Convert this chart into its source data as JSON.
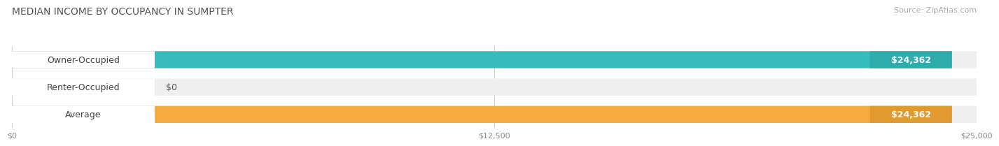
{
  "title": "MEDIAN INCOME BY OCCUPANCY IN SUMPTER",
  "source": "Source: ZipAtlas.com",
  "categories": [
    "Owner-Occupied",
    "Renter-Occupied",
    "Average"
  ],
  "values": [
    24362,
    0,
    24362
  ],
  "bar_colors": [
    "#36bcbc",
    "#c8a8d2",
    "#f5ab3e"
  ],
  "bar_end_colors": [
    "#2eacac",
    "#b090bb",
    "#e09a30"
  ],
  "bar_bg_color": "#efefef",
  "x_max": 25000,
  "x_ticks": [
    0,
    12500,
    25000
  ],
  "x_tick_labels": [
    "$0",
    "$12,500",
    "$25,000"
  ],
  "value_labels": [
    "$24,362",
    "$0",
    "$24,362"
  ],
  "title_fontsize": 10,
  "source_fontsize": 8,
  "label_fontsize": 9,
  "value_fontsize": 9,
  "background_color": "#ffffff",
  "label_pill_color": "#ffffff",
  "grid_color": "#d0d0d0"
}
